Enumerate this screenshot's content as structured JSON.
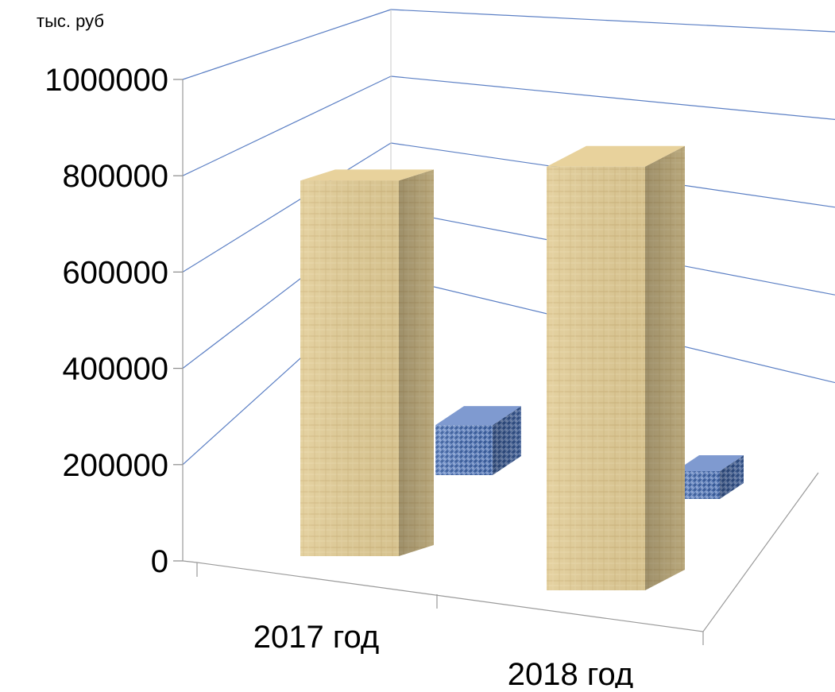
{
  "chart_data": {
    "type": "bar",
    "ylabel": "тыс. руб",
    "categories": [
      "2017 год",
      "2018 год"
    ],
    "ylim": [
      0,
      1000000
    ],
    "yticks": [
      "0",
      "200000",
      "400000",
      "600000",
      "800000",
      "1000000"
    ],
    "grid": true,
    "series": [
      {
        "values": [
          780000,
          880000
        ],
        "color": "#dcc38a"
      },
      {
        "values": [
          180000,
          100000
        ],
        "color": "#5a7ebf"
      }
    ]
  }
}
